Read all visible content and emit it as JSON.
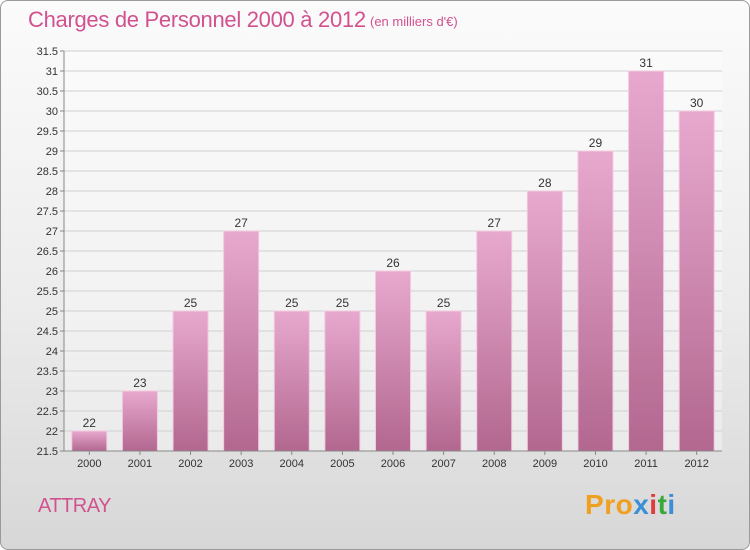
{
  "header": {
    "title": "Charges de Personnel 2000 à 2012",
    "unit_note": "(en milliers d'€)"
  },
  "footer": {
    "commune": "ATTRAY",
    "logo": "Proxiti"
  },
  "colors": {
    "accent": "#d2518f",
    "bar_top": "#e8a9ce",
    "bar_bottom": "#b2678f"
  },
  "chart_data": {
    "type": "bar",
    "categories": [
      "2000",
      "2001",
      "2002",
      "2003",
      "2004",
      "2005",
      "2006",
      "2007",
      "2008",
      "2009",
      "2010",
      "2011",
      "2012"
    ],
    "values": [
      22,
      23,
      25,
      27,
      25,
      25,
      26,
      25,
      27,
      28,
      29,
      31,
      30
    ],
    "ylim": [
      21.5,
      31.5
    ],
    "yticks": [
      21.5,
      22,
      22.5,
      23,
      23.5,
      24,
      24.5,
      25,
      25.5,
      26,
      26.5,
      27,
      27.5,
      28,
      28.5,
      29,
      29.5,
      30,
      30.5,
      31,
      31.5
    ],
    "grid": true
  }
}
